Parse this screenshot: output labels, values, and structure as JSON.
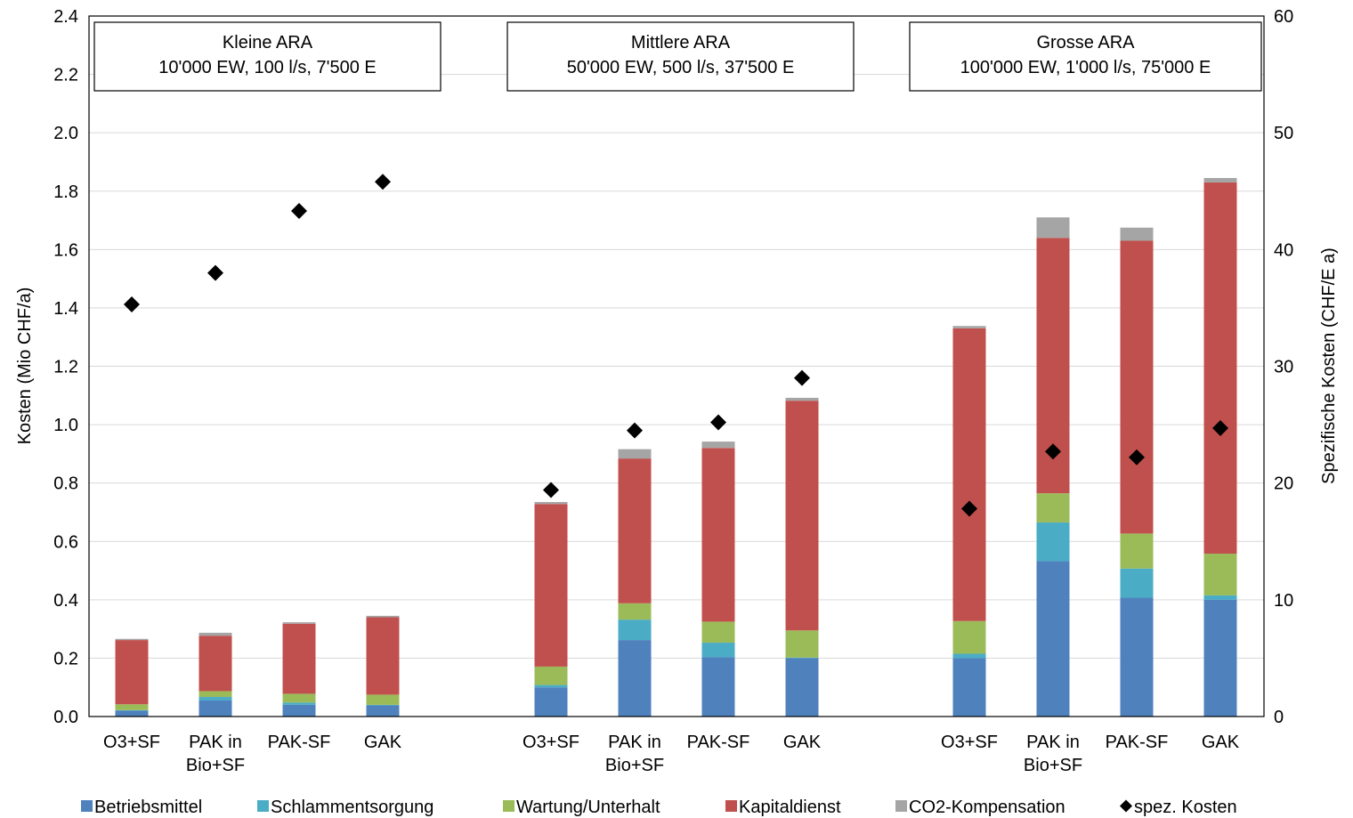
{
  "chart_data": {
    "type": "bar",
    "stacked": true,
    "title": "",
    "ylabel": "Kosten (Mio CHF/a)",
    "ylabel2": "Spezifische Kosten (CHF/E a)",
    "ylim": [
      0,
      2.4
    ],
    "ylim2": [
      0,
      60
    ],
    "yticks": [
      "0.0",
      "0.2",
      "0.4",
      "0.6",
      "0.8",
      "1.0",
      "1.2",
      "1.4",
      "1.6",
      "1.8",
      "2.0",
      "2.2",
      "2.4"
    ],
    "yticks2": [
      "0",
      "10",
      "20",
      "30",
      "40",
      "50",
      "60"
    ],
    "grid": true,
    "legend_position": "bottom",
    "groups": [
      {
        "title": "Kleine ARA",
        "subtitle": "10'000 EW, 100 l/s, 7'500 E",
        "categories": [
          {
            "line1": "O3+SF",
            "line2": ""
          },
          {
            "line1": "PAK in",
            "line2": "Bio+SF"
          },
          {
            "line1": "PAK-SF",
            "line2": ""
          },
          {
            "line1": "GAK",
            "line2": ""
          }
        ]
      },
      {
        "title": "Mittlere ARA",
        "subtitle": "50'000 EW, 500 l/s, 37'500 E",
        "categories": [
          {
            "line1": "O3+SF",
            "line2": ""
          },
          {
            "line1": "PAK in",
            "line2": "Bio+SF"
          },
          {
            "line1": "PAK-SF",
            "line2": ""
          },
          {
            "line1": "GAK",
            "line2": ""
          }
        ]
      },
      {
        "title": "Grosse ARA",
        "subtitle": "100'000 EW, 1'000 l/s, 75'000 E",
        "categories": [
          {
            "line1": "O3+SF",
            "line2": ""
          },
          {
            "line1": "PAK in",
            "line2": "Bio+SF"
          },
          {
            "line1": "PAK-SF",
            "line2": ""
          },
          {
            "line1": "GAK",
            "line2": ""
          }
        ]
      }
    ],
    "series": [
      {
        "name": "Betriebsmittel",
        "color": "#4f81bd",
        "values": [
          0.02,
          0.055,
          0.04,
          0.038,
          0.1,
          0.262,
          0.203,
          0.2,
          0.2,
          0.532,
          0.407,
          0.4
        ]
      },
      {
        "name": "Schlammentsorgung",
        "color": "#4bacc6",
        "values": [
          0.002,
          0.012,
          0.008,
          0.002,
          0.008,
          0.07,
          0.05,
          0.002,
          0.015,
          0.133,
          0.1,
          0.015
        ]
      },
      {
        "name": "Wartung/Unterhalt",
        "color": "#9bbb59",
        "values": [
          0.02,
          0.02,
          0.03,
          0.035,
          0.063,
          0.056,
          0.072,
          0.093,
          0.112,
          0.1,
          0.12,
          0.143
        ]
      },
      {
        "name": "Kapitaldienst",
        "color": "#c0504d",
        "values": [
          0.22,
          0.19,
          0.24,
          0.265,
          0.557,
          0.496,
          0.595,
          0.787,
          1.003,
          0.875,
          1.003,
          1.272
        ]
      },
      {
        "name": "CO2-Kompensation",
        "color": "#a5a5a5",
        "values": [
          0.004,
          0.01,
          0.005,
          0.005,
          0.007,
          0.032,
          0.022,
          0.01,
          0.008,
          0.07,
          0.045,
          0.015
        ]
      }
    ],
    "scatter": {
      "name": "spez. Kosten",
      "color": "#000000",
      "axis": "right",
      "values": [
        35.3,
        38.0,
        43.3,
        45.8,
        19.4,
        24.5,
        25.2,
        29.0,
        17.8,
        22.7,
        22.2,
        24.7
      ]
    }
  }
}
